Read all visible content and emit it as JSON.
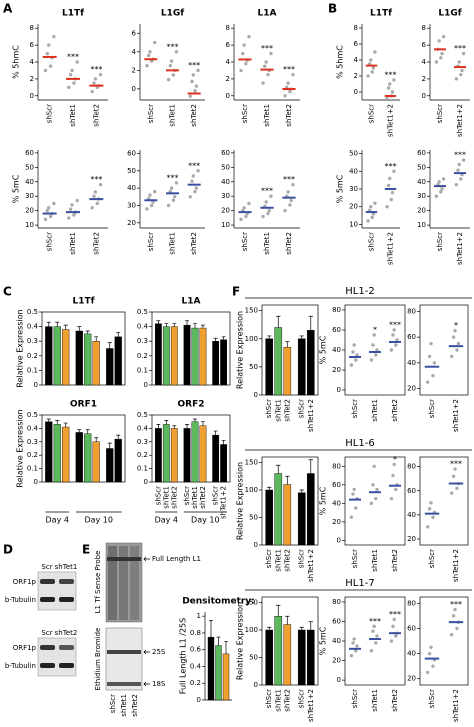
{
  "panel_labels": [
    "A",
    "B",
    "C",
    "D",
    "E",
    "F"
  ],
  "blots": {
    "d_top": {
      "lanes": [
        "Scr",
        "shTet1"
      ],
      "bands": [
        "ORF1p",
        "b-Tubulin"
      ]
    },
    "d_bottom": {
      "lanes": [
        "Scr",
        "shTet2"
      ],
      "bands": [
        "ORF1p",
        "b-Tubulin"
      ]
    },
    "e": {
      "probe": "L1 Tf Sense Probe",
      "stain": "Ethidium Bromide",
      "arrow": "Full Length L1",
      "markers": [
        "25S",
        "18S"
      ],
      "lanes": [
        "shScr",
        "shTet1",
        "shTet2"
      ]
    }
  },
  "chart_data": [
    {
      "type": "dot",
      "title": "L1Tf",
      "ylabel": "% 5hmC",
      "categories": [
        "shScr",
        "shTet1",
        "shTet2"
      ],
      "points": [
        [
          3,
          3.5,
          4.5,
          5,
          6,
          7
        ],
        [
          1,
          1.5,
          2,
          2.5,
          3,
          4
        ],
        [
          0.5,
          1,
          1.2,
          1.5,
          2,
          2.5
        ]
      ],
      "means": [
        4.6,
        2,
        1.2
      ],
      "annotations": [
        null,
        "***",
        "***"
      ],
      "ylim": [
        -0.5,
        8.5
      ],
      "yticks": [
        0,
        2,
        4,
        6,
        8
      ],
      "point_color": "#a9a9a9",
      "mean_color": "#e0301e",
      "frame": false
    },
    {
      "type": "dot",
      "title": "L1Gf",
      "categories": [
        "shScr",
        "shTet1",
        "shTet2"
      ],
      "points": [
        [
          2.5,
          3,
          3.2,
          3.6,
          4,
          5
        ],
        [
          1,
          1.5,
          2,
          2.5,
          3,
          4
        ],
        [
          -0.8,
          -0.2,
          0.3,
          0.8,
          1.5,
          2
        ]
      ],
      "means": [
        3.2,
        2,
        -0.5
      ],
      "annotations": [
        null,
        "***",
        "***"
      ],
      "ylim": [
        -1.2,
        7
      ],
      "yticks": [
        0,
        2,
        4,
        6
      ],
      "point_color": "#a9a9a9",
      "mean_color": "#e0301e",
      "frame": false
    },
    {
      "type": "dot",
      "title": "L1A",
      "categories": [
        "shScr",
        "shTet1",
        "shTet2"
      ],
      "points": [
        [
          3,
          3.8,
          4.2,
          5,
          6,
          7
        ],
        [
          1.5,
          2.5,
          3,
          3.5,
          4,
          5
        ],
        [
          0,
          0.5,
          0.8,
          1,
          1.5,
          2.5
        ]
      ],
      "means": [
        4.3,
        3.1,
        0.8
      ],
      "annotations": [
        null,
        "***",
        "***"
      ],
      "ylim": [
        -0.5,
        8.5
      ],
      "yticks": [
        0,
        2,
        4,
        6,
        8
      ],
      "point_color": "#a9a9a9",
      "mean_color": "#e0301e",
      "frame": false
    },
    {
      "type": "dot",
      "ylabel": "% 5mC",
      "categories": [
        "shScr",
        "shTet1",
        "shTet2"
      ],
      "points": [
        [
          14,
          16,
          18,
          20,
          22,
          25
        ],
        [
          15,
          17,
          19,
          21,
          24,
          27
        ],
        [
          22,
          25,
          28,
          30,
          33,
          38
        ]
      ],
      "means": [
        18,
        19,
        28
      ],
      "annotations": [
        null,
        null,
        "***"
      ],
      "ylim": [
        8,
        62
      ],
      "yticks": [
        10,
        20,
        30,
        40,
        50,
        60
      ],
      "point_color": "#a9a9a9",
      "mean_color": "#3a4fa0",
      "frame": false
    },
    {
      "type": "dot",
      "categories": [
        "shScr",
        "shTet1",
        "shTet2"
      ],
      "points": [
        [
          28,
          30,
          32,
          34,
          36,
          38
        ],
        [
          30,
          33,
          35,
          38,
          40,
          43
        ],
        [
          35,
          38,
          40,
          44,
          47,
          50
        ]
      ],
      "means": [
        33,
        37,
        42
      ],
      "annotations": [
        null,
        "***",
        "***"
      ],
      "ylim": [
        17,
        62
      ],
      "yticks": [
        20,
        30,
        40,
        50,
        60
      ],
      "point_color": "#a9a9a9",
      "mean_color": "#3a4fa0",
      "frame": false
    },
    {
      "type": "dot",
      "categories": [
        "shScr",
        "shTet1",
        "shTet2"
      ],
      "points": [
        [
          14,
          16,
          18,
          20,
          22,
          25
        ],
        [
          16,
          18,
          20,
          23,
          26,
          30
        ],
        [
          20,
          24,
          27,
          30,
          33,
          38
        ]
      ],
      "means": [
        19,
        22,
        29
      ],
      "annotations": [
        null,
        "***",
        "***"
      ],
      "ylim": [
        8,
        62
      ],
      "yticks": [
        10,
        20,
        30,
        40,
        50,
        60
      ],
      "point_color": "#a9a9a9",
      "mean_color": "#3a4fa0",
      "frame": false
    },
    {
      "type": "dot",
      "title": "L1Tf",
      "ylabel": "% 5hmC",
      "categories": [
        "shScr",
        "shTet1+2"
      ],
      "points": [
        [
          2,
          2.5,
          3,
          3.5,
          4,
          5
        ],
        [
          -0.8,
          -0.5,
          0,
          0.5,
          1,
          1.5
        ]
      ],
      "means": [
        3.3,
        -0.5
      ],
      "annotations": [
        null,
        "***"
      ],
      "ylim": [
        -1,
        8.5
      ],
      "yticks": [
        0,
        2,
        4,
        6,
        8
      ],
      "point_color": "#a9a9a9",
      "mean_color": "#e0301e",
      "frame": false
    },
    {
      "type": "dot",
      "title": "L1Gf",
      "categories": [
        "shScr",
        "shTet1+2"
      ],
      "points": [
        [
          4,
          4.5,
          5,
          5.5,
          6.5,
          7
        ],
        [
          2,
          2.5,
          3,
          3.5,
          4,
          5
        ]
      ],
      "means": [
        5.5,
        3.4
      ],
      "annotations": [
        null,
        "***"
      ],
      "ylim": [
        -0.5,
        8.5
      ],
      "yticks": [
        0,
        2,
        4,
        6,
        8
      ],
      "point_color": "#a9a9a9",
      "mean_color": "#e0301e",
      "frame": false
    },
    {
      "type": "dot",
      "ylabel": "% 5mC",
      "categories": [
        "shScr",
        "shTet1+2"
      ],
      "points": [
        [
          12,
          14,
          16,
          18,
          20,
          22
        ],
        [
          20,
          24,
          28,
          32,
          36,
          40
        ]
      ],
      "means": [
        17,
        30
      ],
      "annotations": [
        null,
        "***"
      ],
      "ylim": [
        8,
        52
      ],
      "yticks": [
        10,
        20,
        30,
        40,
        50
      ],
      "point_color": "#a9a9a9",
      "mean_color": "#3a4fa0",
      "frame": false
    },
    {
      "type": "dot",
      "categories": [
        "shScr",
        "shTet1+2"
      ],
      "points": [
        [
          30,
          33,
          35,
          38,
          40,
          42
        ],
        [
          38,
          42,
          45,
          48,
          52,
          55
        ]
      ],
      "means": [
        37,
        46
      ],
      "annotations": [
        null,
        "***"
      ],
      "ylim": [
        8,
        62
      ],
      "yticks": [
        10,
        20,
        30,
        40,
        50,
        60
      ],
      "point_color": "#a9a9a9",
      "mean_color": "#3a4fa0",
      "frame": false
    },
    {
      "type": "bar",
      "title": "L1Tf",
      "ylabel": "Relative Expression",
      "values": [
        0.4,
        0.4,
        0.38,
        0.37,
        0.35,
        0.3,
        0.25,
        0.33
      ],
      "errors": [
        0.03,
        0.03,
        0.03,
        0.03,
        0.02,
        0.03,
        0.04,
        0.03
      ],
      "colors": [
        "#000000",
        "#5cb85c",
        "#f0a030",
        "#000000",
        "#5cb85c",
        "#f0a030",
        "#000000",
        "#000000"
      ],
      "ylim": [
        0,
        0.5
      ],
      "yticks": [
        0,
        0.1,
        0.2,
        0.3,
        0.4,
        0.5
      ],
      "frame": true
    },
    {
      "type": "bar",
      "title": "L1A",
      "values": [
        0.42,
        0.4,
        0.4,
        0.41,
        0.39,
        0.39,
        0.3,
        0.31
      ],
      "errors": [
        0.02,
        0.02,
        0.02,
        0.03,
        0.03,
        0.02,
        0.02,
        0.02
      ],
      "colors": [
        "#000000",
        "#5cb85c",
        "#f0a030",
        "#000000",
        "#5cb85c",
        "#f0a030",
        "#000000",
        "#000000"
      ],
      "ylim": [
        0,
        0.5
      ],
      "yticks": [
        0,
        0.1,
        0.2,
        0.3,
        0.4,
        0.5
      ],
      "frame": true
    },
    {
      "type": "bar",
      "title": "ORF1",
      "ylabel": "Relative Expression",
      "values": [
        0.45,
        0.43,
        0.41,
        0.37,
        0.36,
        0.3,
        0.25,
        0.32
      ],
      "errors": [
        0.02,
        0.03,
        0.03,
        0.02,
        0.03,
        0.03,
        0.04,
        0.03
      ],
      "colors": [
        "#000000",
        "#5cb85c",
        "#f0a030",
        "#000000",
        "#5cb85c",
        "#f0a030",
        "#000000",
        "#000000"
      ],
      "ylim": [
        0,
        0.5
      ],
      "yticks": [
        0,
        0.1,
        0.2,
        0.3,
        0.4,
        0.5
      ],
      "frame": true,
      "groups": [
        {
          "label": "Day 4",
          "size": 3
        },
        {
          "label": "Day 10",
          "size": 5
        }
      ]
    },
    {
      "type": "bar",
      "title": "ORF2",
      "categories": [
        "shScr",
        "shTet1",
        "shTet2",
        "shScr",
        "shTet1",
        "shTet2",
        "shScr",
        "shTet1+2"
      ],
      "values": [
        0.4,
        0.43,
        0.4,
        0.4,
        0.45,
        0.42,
        0.35,
        0.28
      ],
      "errors": [
        0.03,
        0.03,
        0.02,
        0.03,
        0.02,
        0.03,
        0.03,
        0.03
      ],
      "colors": [
        "#000000",
        "#5cb85c",
        "#f0a030",
        "#000000",
        "#5cb85c",
        "#f0a030",
        "#000000",
        "#000000"
      ],
      "ylim": [
        0,
        0.5
      ],
      "yticks": [
        0,
        0.1,
        0.2,
        0.3,
        0.4,
        0.5
      ],
      "frame": true,
      "groups": [
        {
          "label": "Day 4",
          "size": 3
        },
        {
          "label": "Day 10",
          "size": 5
        }
      ]
    },
    {
      "type": "bar",
      "title": "Densitometry:",
      "ylabel": "Full Length L1 /25S",
      "values": [
        0.75,
        0.65,
        0.55
      ],
      "errors": [
        0.2,
        0.1,
        0.15
      ],
      "colors": [
        "#000000",
        "#5cb85c",
        "#f0a030"
      ],
      "ylim": [
        0,
        1.05
      ],
      "yticks": [
        0,
        0.2,
        0.4,
        0.6,
        0.8,
        1
      ],
      "frame": false
    },
    {
      "type": "bar",
      "title": "HL1-2",
      "ylabel": "Relative Expression",
      "categories": [
        "shScr",
        "shTet1",
        "shTet2",
        "shScr",
        "shTet1+2"
      ],
      "values": [
        100,
        120,
        85,
        100,
        115
      ],
      "errors": [
        5,
        20,
        10,
        5,
        25
      ],
      "colors": [
        "#000000",
        "#5cb85c",
        "#f0a030",
        "#000000",
        "#000000"
      ],
      "ylim": [
        0,
        160
      ],
      "yticks": [
        0,
        50,
        100,
        150
      ],
      "frame": true
    },
    {
      "type": "dot",
      "ylabel": "% 5mC",
      "categories": [
        "shScr",
        "shTet1",
        "shTet2"
      ],
      "points": [
        [
          25,
          30,
          35,
          38,
          45
        ],
        [
          30,
          35,
          40,
          45,
          55
        ],
        [
          40,
          45,
          50,
          55,
          60
        ]
      ],
      "means": [
        33,
        38,
        48
      ],
      "annotations": [
        null,
        "*",
        "***"
      ],
      "ylim": [
        -5,
        85
      ],
      "yticks": [
        0,
        20,
        40,
        60,
        80
      ],
      "point_color": "#a9a9a9",
      "mean_color": "#3a4fa0",
      "frame": true
    },
    {
      "type": "dot",
      "categories": [
        "shScr",
        "shTet1+2"
      ],
      "points": [
        [
          25,
          30,
          40,
          45,
          55
        ],
        [
          45,
          50,
          55,
          60,
          65
        ]
      ],
      "means": [
        37,
        53
      ],
      "annotations": [
        null,
        "*"
      ],
      "ylim": [
        15,
        85
      ],
      "yticks": [
        20,
        40,
        60,
        80
      ],
      "point_color": "#a9a9a9",
      "mean_color": "#3a4fa0",
      "frame": true
    },
    {
      "type": "bar",
      "title": "HL1-6",
      "ylabel": "Relative Expression",
      "categories": [
        "shScr",
        "shTet1",
        "shTet2",
        "shScr",
        "shTet1+2"
      ],
      "values": [
        100,
        130,
        110,
        95,
        130
      ],
      "errors": [
        5,
        15,
        15,
        5,
        25
      ],
      "colors": [
        "#000000",
        "#5cb85c",
        "#f0a030",
        "#000000",
        "#000000"
      ],
      "ylim": [
        0,
        160
      ],
      "yticks": [
        0,
        50,
        100,
        150
      ],
      "frame": true
    },
    {
      "type": "dot",
      "ylabel": "% 5mC",
      "categories": [
        "shScr",
        "shTet1",
        "shTet2"
      ],
      "points": [
        [
          25,
          35,
          45,
          50,
          55
        ],
        [
          40,
          45,
          55,
          60,
          80
        ],
        [
          45,
          55,
          60,
          70,
          82
        ]
      ],
      "means": [
        44,
        52,
        59
      ],
      "annotations": [
        null,
        null,
        "*"
      ],
      "ylim": [
        -5,
        90
      ],
      "yticks": [
        0,
        20,
        40,
        60,
        80
      ],
      "point_color": "#a9a9a9",
      "mean_color": "#3a4fa0",
      "frame": true
    },
    {
      "type": "dot",
      "categories": [
        "shScr",
        "shTet1+2"
      ],
      "points": [
        [
          30,
          38,
          42,
          45,
          50
        ],
        [
          58,
          62,
          66,
          72,
          78
        ]
      ],
      "means": [
        41,
        66
      ],
      "annotations": [
        null,
        "***"
      ],
      "ylim": [
        15,
        88
      ],
      "yticks": [
        20,
        40,
        60,
        80
      ],
      "point_color": "#a9a9a9",
      "mean_color": "#3a4fa0",
      "frame": true
    },
    {
      "type": "bar",
      "title": "HL1-7",
      "ylabel": "Relative Expression",
      "categories": [
        "shScr",
        "shTet1",
        "shTet2",
        "shScr",
        "shTet1+2"
      ],
      "values": [
        100,
        125,
        110,
        100,
        100
      ],
      "errors": [
        5,
        20,
        15,
        5,
        15
      ],
      "colors": [
        "#000000",
        "#5cb85c",
        "#f0a030",
        "#000000",
        "#000000"
      ],
      "ylim": [
        0,
        160
      ],
      "yticks": [
        0,
        50,
        100,
        150
      ],
      "frame": true
    },
    {
      "type": "dot",
      "ylabel": "% 5mC",
      "categories": [
        "shScr",
        "shTet1",
        "shTet2"
      ],
      "points": [
        [
          25,
          30,
          35,
          38,
          42
        ],
        [
          30,
          38,
          45,
          50,
          55
        ],
        [
          40,
          45,
          48,
          55,
          62
        ]
      ],
      "means": [
        32,
        42,
        48
      ],
      "annotations": [
        null,
        "***",
        "***"
      ],
      "ylim": [
        -5,
        85
      ],
      "yticks": [
        0,
        20,
        40,
        60,
        80
      ],
      "point_color": "#a9a9a9",
      "mean_color": "#3a4fa0",
      "frame": true
    },
    {
      "type": "dot",
      "categories": [
        "shScr",
        "shTet1+2"
      ],
      "points": [
        [
          25,
          30,
          35,
          40,
          45
        ],
        [
          55,
          60,
          65,
          70,
          75
        ]
      ],
      "means": [
        36,
        65
      ],
      "annotations": [
        null,
        "***"
      ],
      "ylim": [
        15,
        85
      ],
      "yticks": [
        20,
        40,
        60,
        80
      ],
      "point_color": "#a9a9a9",
      "mean_color": "#3a4fa0",
      "frame": true
    }
  ]
}
